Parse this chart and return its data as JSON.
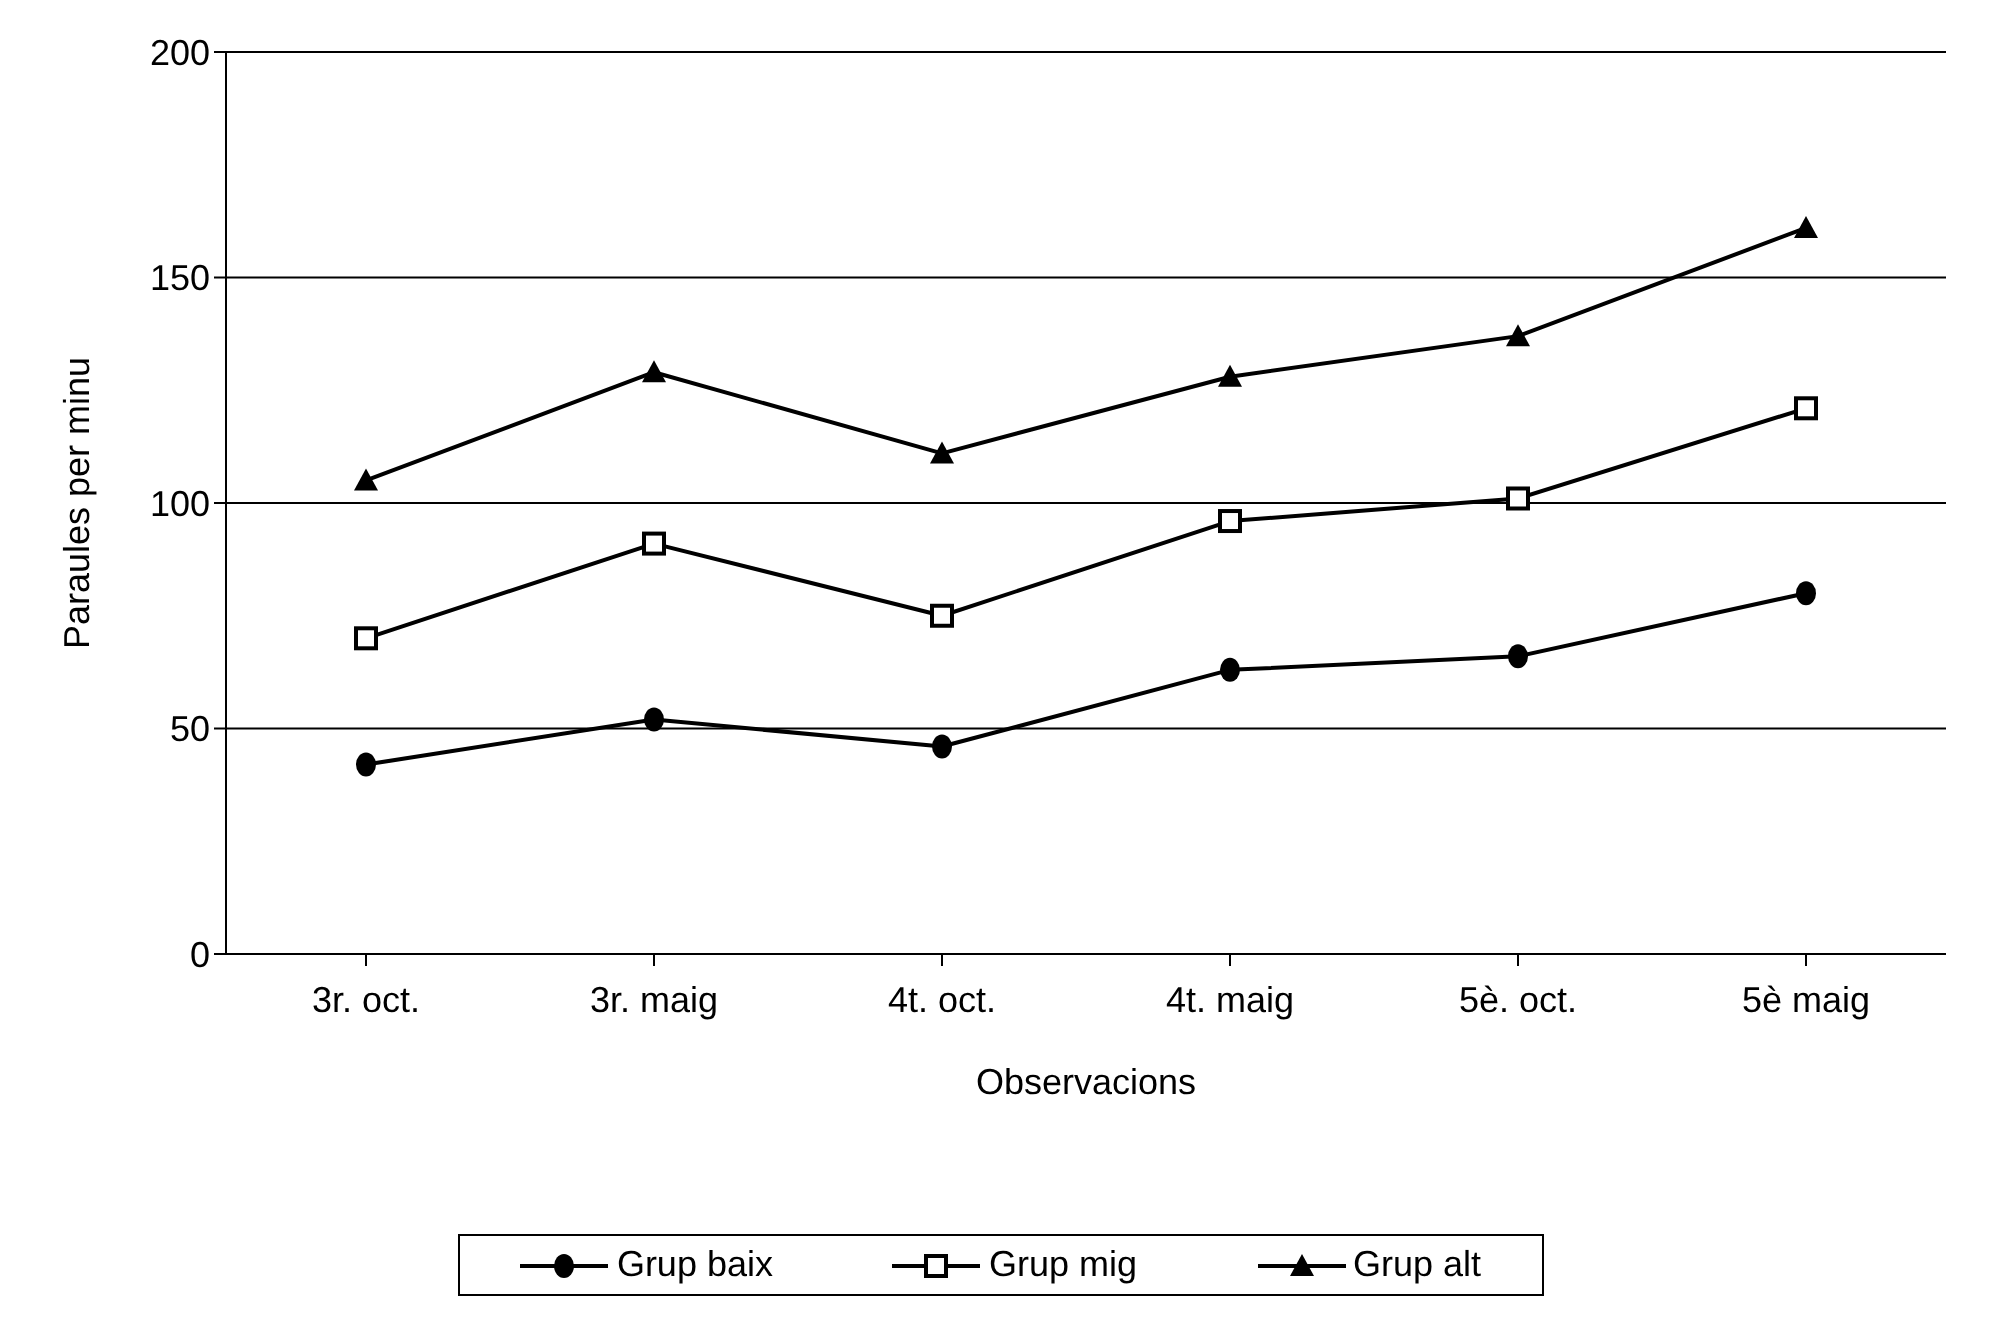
{
  "chart_data": {
    "type": "line",
    "xlabel": "Observacions",
    "ylabel": "Paraules per minu",
    "categories": [
      "3r. oct.",
      "3r. maig",
      "4t. oct.",
      "4t. maig",
      "5è. oct.",
      "5è maig"
    ],
    "series": [
      {
        "name": "Grup baix",
        "color": "#000000",
        "marker": "circle",
        "values": [
          42,
          52,
          46,
          63,
          66,
          80
        ]
      },
      {
        "name": "Grup mig",
        "color": "#000000",
        "marker": "square",
        "values": [
          70,
          91,
          75,
          96,
          101,
          121
        ]
      },
      {
        "name": "Grup alt",
        "color": "#000000",
        "marker": "triangle",
        "values": [
          105,
          129,
          111,
          128,
          137,
          161
        ]
      }
    ],
    "ylim": [
      0,
      200
    ],
    "yticks": [
      0,
      50,
      100,
      150,
      200
    ],
    "grid": "y",
    "legend": "bottom",
    "line_style": "solid"
  }
}
